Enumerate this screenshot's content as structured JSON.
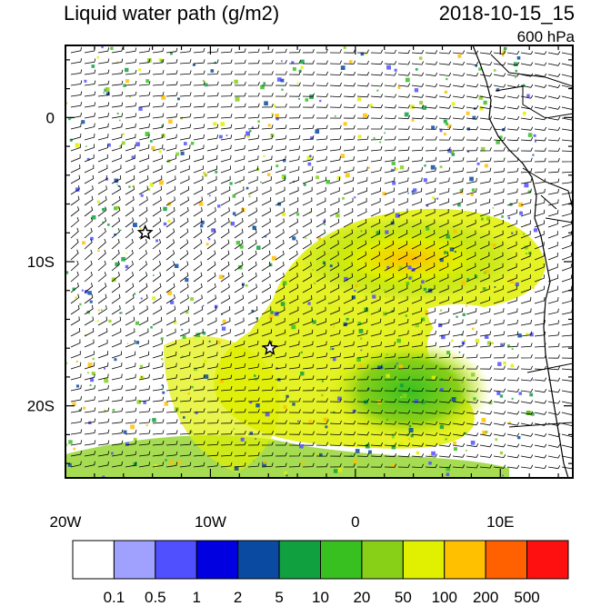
{
  "title": "Liquid water path (g/m2)",
  "datetime": "2018-10-15_15",
  "level": "600 hPa",
  "x_ticks": [
    "20W",
    "10W",
    "0",
    "10E"
  ],
  "y_ticks": [
    "0",
    "10S",
    "20S"
  ],
  "colorbar": {
    "labels": [
      "0.1",
      "0.5",
      "1",
      "2",
      "5",
      "10",
      "20",
      "50",
      "100",
      "200",
      "500"
    ],
    "colors": [
      "#ffffff",
      "#a0a0ff",
      "#5050ff",
      "#0000e0",
      "#0a4aa0",
      "#10a040",
      "#38c020",
      "#88d018",
      "#e0f000",
      "#ffc000",
      "#ff6000",
      "#ff1010"
    ]
  },
  "markers": [
    {
      "name": "star-marker",
      "lon": -14.5,
      "lat": -8
    },
    {
      "name": "star-marker",
      "lon": -5.9,
      "lat": -16
    }
  ],
  "map_extent": {
    "lon": [
      -20,
      15
    ],
    "lat": [
      -25,
      5
    ]
  }
}
